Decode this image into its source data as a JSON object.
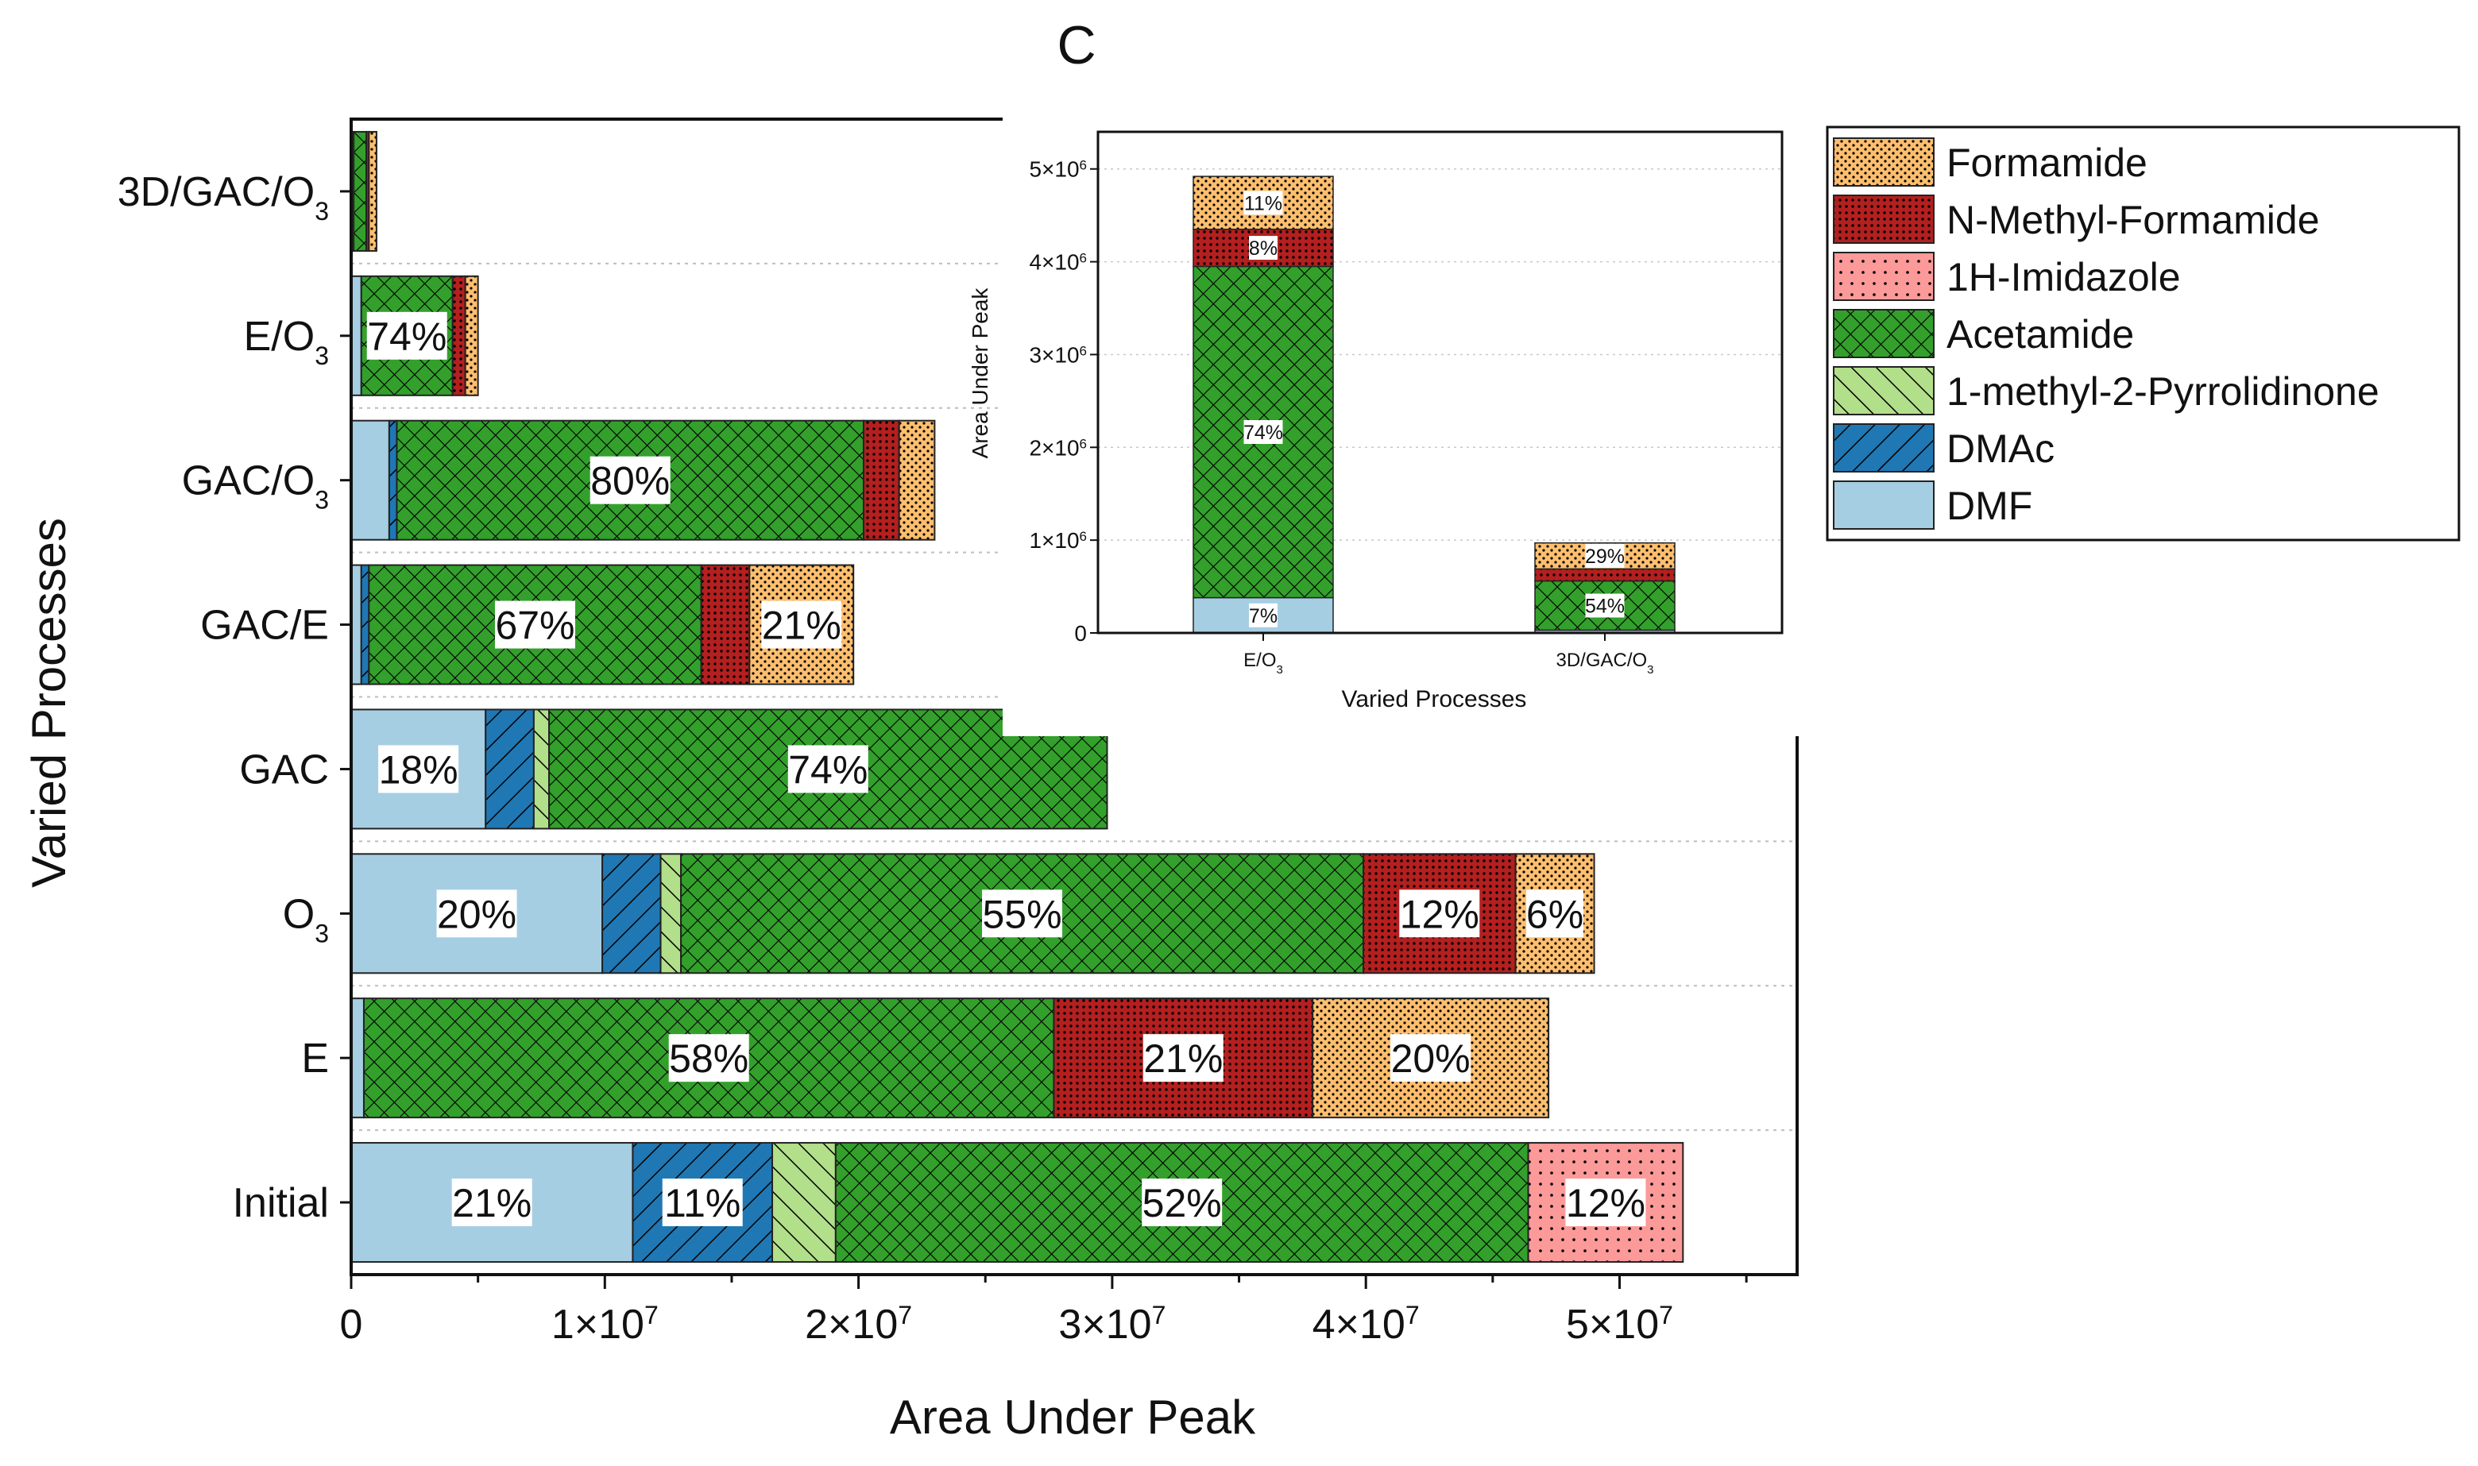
{
  "chart_data": [
    {
      "type": "bar",
      "orientation": "horizontal",
      "stacked": true,
      "title": "C",
      "xlabel": "Area Under Peak",
      "ylabel": "Varied Processes",
      "xlim": [
        0,
        57000000
      ],
      "x_ticks": [
        {
          "value": 0,
          "mant": "0",
          "exp": ""
        },
        {
          "value": 10000000,
          "mant": "1×10",
          "exp": "7"
        },
        {
          "value": 20000000,
          "mant": "2×10",
          "exp": "7"
        },
        {
          "value": 30000000,
          "mant": "3×10",
          "exp": "7"
        },
        {
          "value": 40000000,
          "mant": "4×10",
          "exp": "7"
        },
        {
          "value": 50000000,
          "mant": "5×10",
          "exp": "7"
        }
      ],
      "categories": [
        {
          "base": "Initial",
          "sub": ""
        },
        {
          "base": "E",
          "sub": ""
        },
        {
          "base": "O",
          "sub": "3"
        },
        {
          "base": "GAC",
          "sub": ""
        },
        {
          "base": "GAC/E",
          "sub": ""
        },
        {
          "base": "GAC/O",
          "sub": "3"
        },
        {
          "base": "E/O",
          "sub": "3"
        },
        {
          "base": "3D/GAC/O",
          "sub": "3"
        }
      ],
      "series": [
        {
          "name": "DMF",
          "color": "#a6cee3",
          "pattern": "none",
          "values": [
            11100000,
            500000,
            9900000,
            5300000,
            400000,
            1500000,
            400000,
            100000
          ],
          "labels": [
            "21%",
            "",
            "20%",
            "18%",
            "",
            "",
            "",
            ""
          ]
        },
        {
          "name": "DMAc",
          "color": "#1f78b4",
          "pattern": "diag-fwd",
          "values": [
            5500000,
            0,
            2300000,
            1900000,
            300000,
            300000,
            0,
            0
          ],
          "labels": [
            "11%",
            "",
            "",
            "",
            "",
            "",
            "",
            ""
          ]
        },
        {
          "name": "1-methyl-2-Pyrrolidinone",
          "color": "#b2df8a",
          "pattern": "diag-back",
          "values": [
            2500000,
            0,
            800000,
            600000,
            0,
            0,
            0,
            0
          ],
          "labels": [
            "",
            "",
            "",
            "",
            "",
            "",
            "",
            ""
          ]
        },
        {
          "name": "Acetamide",
          "color": "#33a02c",
          "pattern": "crosshatch",
          "values": [
            27300000,
            27200000,
            26900000,
            22000000,
            13100000,
            18400000,
            3600000,
            500000
          ],
          "labels": [
            "52%",
            "58%",
            "55%",
            "74%",
            "67%",
            "80%",
            "74%",
            ""
          ]
        },
        {
          "name": "1H-Imidazole",
          "color": "#fb9a99",
          "pattern": "dots-sparse",
          "values": [
            6100000,
            0,
            0,
            0,
            0,
            0,
            0,
            0
          ],
          "labels": [
            "12%",
            "",
            "",
            "",
            "",
            "",
            "",
            ""
          ]
        },
        {
          "name": "N-Methyl-Formamide",
          "color": "#b41f1f",
          "pattern": "dots-dense",
          "values": [
            0,
            10200000,
            6000000,
            0,
            1900000,
            1400000,
            500000,
            100000
          ],
          "labels": [
            "",
            "21%",
            "12%",
            "",
            "",
            "",
            "",
            ""
          ]
        },
        {
          "name": "Formamide",
          "color": "#fdbf6f",
          "pattern": "dots-fine",
          "values": [
            0,
            9300000,
            3100000,
            0,
            4100000,
            1400000,
            500000,
            300000
          ],
          "labels": [
            "",
            "20%",
            "6%",
            "",
            "21%",
            "",
            "",
            ""
          ]
        }
      ],
      "legend": {
        "placement": "right",
        "entries": [
          {
            "name": "Formamide",
            "color": "#fdbf6f",
            "pattern": "dots-fine"
          },
          {
            "name": "N-Methyl-Formamide",
            "color": "#b41f1f",
            "pattern": "dots-dense"
          },
          {
            "name": "1H-Imidazole",
            "color": "#fb9a99",
            "pattern": "dots-sparse"
          },
          {
            "name": "Acetamide",
            "color": "#33a02c",
            "pattern": "crosshatch"
          },
          {
            "name": "1-methyl-2-Pyrrolidinone",
            "color": "#b2df8a",
            "pattern": "diag-back"
          },
          {
            "name": "DMAc",
            "color": "#1f78b4",
            "pattern": "diag-fwd"
          },
          {
            "name": "DMF",
            "color": "#a6cee3",
            "pattern": "none"
          }
        ]
      },
      "grid": "horizontal dotted"
    },
    {
      "type": "bar",
      "orientation": "vertical",
      "stacked": true,
      "inset": true,
      "xlabel": "Varied Processes",
      "ylabel": "Area Under Peak",
      "ylim": [
        0,
        5400000
      ],
      "y_ticks": [
        {
          "value": 0,
          "mant": "0",
          "exp": ""
        },
        {
          "value": 1000000,
          "mant": "1×10",
          "exp": "6"
        },
        {
          "value": 2000000,
          "mant": "2×10",
          "exp": "6"
        },
        {
          "value": 3000000,
          "mant": "3×10",
          "exp": "6"
        },
        {
          "value": 4000000,
          "mant": "4×10",
          "exp": "6"
        },
        {
          "value": 5000000,
          "mant": "5×10",
          "exp": "6"
        }
      ],
      "categories": [
        {
          "base": "E/O",
          "sub": "3"
        },
        {
          "base": "3D/GAC/O",
          "sub": "3"
        }
      ],
      "series": [
        {
          "name": "DMF",
          "color": "#a6cee3",
          "pattern": "none",
          "values": [
            380000,
            30000
          ],
          "labels": [
            "7%",
            ""
          ]
        },
        {
          "name": "Acetamide",
          "color": "#33a02c",
          "pattern": "crosshatch",
          "values": [
            3570000,
            530000
          ],
          "labels": [
            "74%",
            "54%"
          ]
        },
        {
          "name": "N-Methyl-Formamide",
          "color": "#b41f1f",
          "pattern": "dots-dense",
          "values": [
            400000,
            130000
          ],
          "labels": [
            "8%",
            ""
          ]
        },
        {
          "name": "Formamide",
          "color": "#fdbf6f",
          "pattern": "dots-fine",
          "values": [
            570000,
            280000
          ],
          "labels": [
            "11%",
            "29%"
          ]
        }
      ],
      "grid": "horizontal dotted"
    }
  ]
}
